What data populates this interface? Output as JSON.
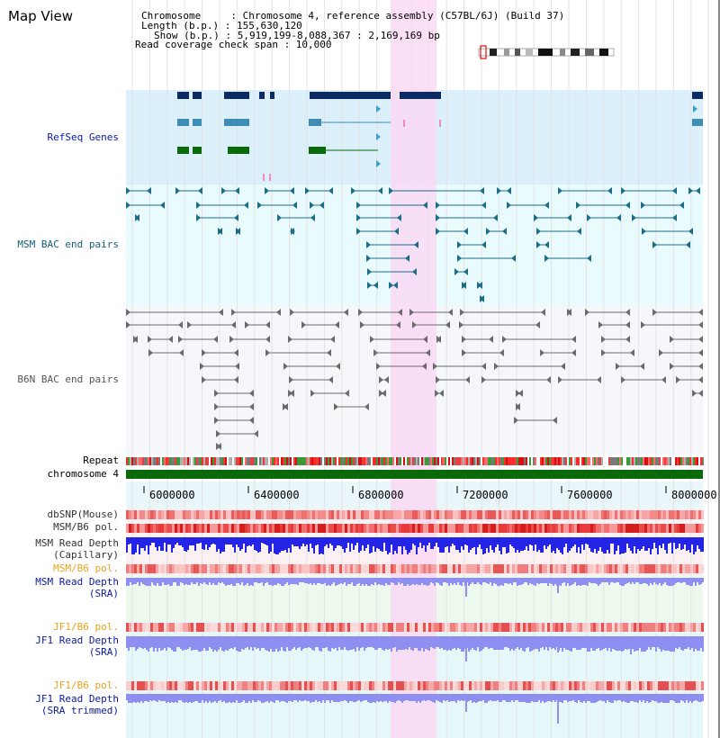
{
  "page": {
    "title": "Map View"
  },
  "info": {
    "chromosome": "Chromosome     : Chromosome 4, reference assembly (C57BL/6J) (Build 37)",
    "length": "Length (b.p.) : 155,630,120",
    "show": "Show (b.p.) : 5,919,199-8,088,367 : 2,169,169 bp",
    "coverage": "Read coverage check span : 10,000"
  },
  "tracks": {
    "refseq": "RefSeq Genes",
    "msm_bac": "MSM BAC end pairs",
    "b6n_bac": "B6N BAC end pairs",
    "repeat": "Repeat",
    "chromosome": "chromosome 4",
    "dbsnp": "dbSNP(Mouse)",
    "msm_b6_pol_1": "MSM/B6 pol.",
    "msm_read_cap_1": "MSM Read Depth",
    "msm_read_cap_2": "(Capillary)",
    "msm_b6_pol_2": "MSM/B6 pol.",
    "msm_read_sra_1": "MSM Read Depth",
    "msm_read_sra_2": "(SRA)",
    "jf1_b6_pol_1": "JF1/B6 pol.",
    "jf1_read_sra_1": "JF1 Read Depth",
    "jf1_read_sra_2": "(SRA)",
    "jf1_b6_pol_2": "JF1/B6 pol.",
    "jf1_trim_1": "JF1 Read Depth",
    "jf1_trim_2": "(SRA trimmed)"
  },
  "axis": {
    "ticks": [
      "6000000",
      "6400000",
      "6800000",
      "7200000",
      "7600000",
      "8000000"
    ]
  },
  "colors": {
    "refseq_bg": "#dbf0fa",
    "msm_bg": "#e9fbfd",
    "b6n_bg": "#f6f7fa",
    "highlight": "#f9d9f3",
    "dark_blue": "#0d2b63",
    "mid_blue": "#3d8db5",
    "green": "#0a6a0a",
    "msm_line": "#1b6e8a",
    "b6n_line": "#6b6b6b",
    "depth_blue": "#2424e6",
    "depth_light": "#8f8ff2",
    "label_navy": "#0a1a9e",
    "label_teal": "#11607a",
    "label_orange": "#e6a21a"
  }
}
